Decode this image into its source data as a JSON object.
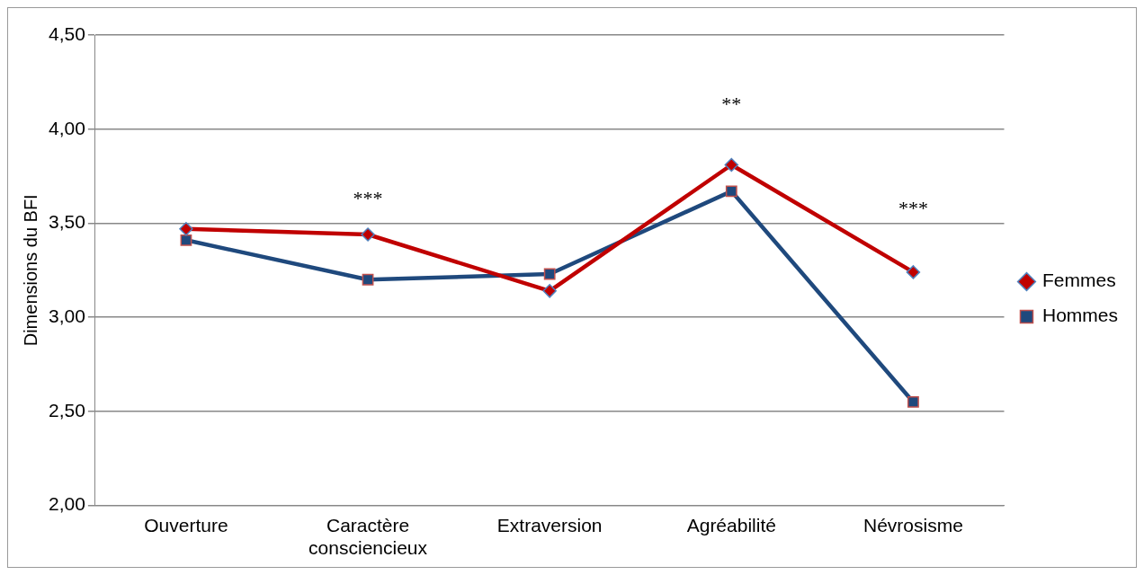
{
  "chart_data": {
    "type": "line",
    "ylabel": "Dimensions du BFI",
    "categories": [
      "Ouverture",
      "Caractère\nconsciencieux",
      "Extraversion",
      "Agréabilité",
      "Névrosisme"
    ],
    "series": [
      {
        "name": "Femmes",
        "color": "#c00000",
        "marker": "diamond",
        "values": [
          3.47,
          3.44,
          3.14,
          3.81,
          3.24
        ]
      },
      {
        "name": "Hommes",
        "color": "#1f497d",
        "marker": "square",
        "values": [
          3.41,
          3.2,
          3.23,
          3.67,
          2.55
        ]
      }
    ],
    "ylim": [
      2,
      4.5
    ],
    "yticks": [
      {
        "value": 2,
        "label": "2,00"
      },
      {
        "value": 2.5,
        "label": "2,50"
      },
      {
        "value": 3,
        "label": "3,00"
      },
      {
        "value": 3.5,
        "label": "3,50"
      },
      {
        "value": 4,
        "label": "4,00"
      },
      {
        "value": 4.5,
        "label": "4,50"
      }
    ],
    "grid": "y",
    "legend": "right",
    "line_style": "solid",
    "annotations": [
      "***",
      "**",
      "***"
    ]
  }
}
